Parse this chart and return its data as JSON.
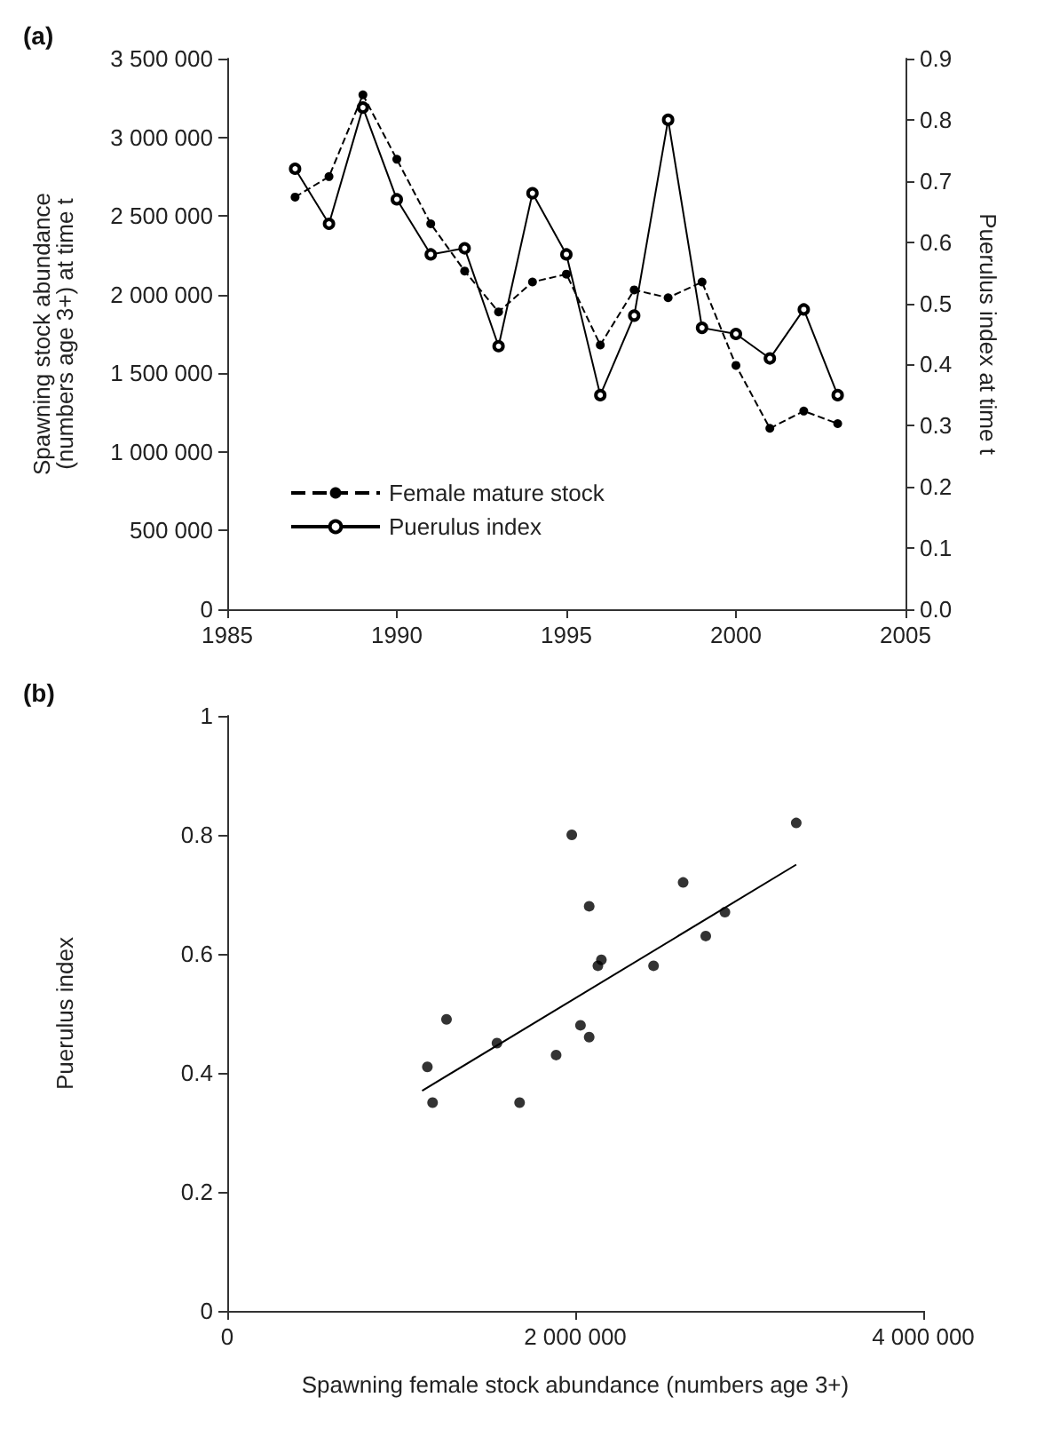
{
  "chart_data": [
    {
      "type": "line",
      "title": "(a)",
      "ylabel": "Spawning stock abundance\n(numbers age 3+) at time t",
      "y2label": "Puerulus index at time t",
      "x": [
        1987,
        1988,
        1989,
        1990,
        1991,
        1992,
        1993,
        1994,
        1995,
        1996,
        1997,
        1998,
        1999,
        2000,
        2001,
        2002,
        2003
      ],
      "series": [
        {
          "name": "Female mature stock",
          "color": "#000000",
          "line_style": "dashed",
          "marker": "circle",
          "values": [
            2620000,
            2750000,
            3270000,
            2860000,
            2450000,
            2150000,
            1890000,
            2080000,
            2130000,
            1680000,
            2030000,
            1980000,
            2080000,
            1550000,
            1150000,
            1260000,
            1180000
          ]
        },
        {
          "name": "Puerulus index",
          "color": "#000000",
          "line_style": "solid",
          "marker": "circle",
          "axis": "y2",
          "values": [
            0.72,
            0.63,
            0.82,
            0.67,
            0.58,
            0.59,
            0.43,
            0.68,
            0.58,
            0.35,
            0.48,
            0.8,
            0.46,
            0.45,
            0.41,
            0.49,
            0.35
          ]
        }
      ],
      "xlim": [
        1985,
        2005
      ],
      "xticks": [
        1985,
        1990,
        1995,
        2000,
        2005
      ],
      "ylim": [
        0,
        3500000
      ],
      "yticks": [
        0,
        {
          "value": 500000,
          "label": "500 000"
        },
        {
          "value": 1000000,
          "label": "1 000 000"
        },
        {
          "value": 1500000,
          "label": "1 500 000"
        },
        {
          "value": 2000000,
          "label": "2 000 000"
        },
        {
          "value": 2500000,
          "label": "2 500 000"
        },
        {
          "value": 3000000,
          "label": "3 000 000"
        },
        {
          "value": 3500000,
          "label": "3 500 000"
        }
      ],
      "y2lim": [
        0,
        0.9
      ],
      "y2ticks": [
        {
          "value": 0,
          "label": "0.0"
        },
        0.1,
        0.2,
        0.3,
        0.4,
        0.5,
        0.6,
        0.7,
        0.8,
        0.9
      ],
      "legend": "bottom left",
      "grid": false
    },
    {
      "type": "scatter",
      "title": "(b)",
      "xlabel": "Spawning female stock abundance (numbers age 3+)",
      "ylabel": "Puerulus index",
      "series": [
        {
          "type": "scatter",
          "color": "#000000",
          "marker": "circle",
          "x": [
            2620000,
            2750000,
            3270000,
            2860000,
            2450000,
            2150000,
            1890000,
            2080000,
            2130000,
            1680000,
            2030000,
            1980000,
            2080000,
            1550000,
            1150000,
            1260000,
            1180000
          ],
          "values": [
            0.72,
            0.63,
            0.82,
            0.67,
            0.58,
            0.59,
            0.43,
            0.68,
            0.58,
            0.35,
            0.48,
            0.8,
            0.46,
            0.45,
            0.41,
            0.49,
            0.35
          ]
        },
        {
          "type": "line",
          "color": "#000000",
          "marker": "none",
          "line_style": "solid",
          "x": [
            1120000,
            3270000
          ],
          "values": [
            0.37,
            0.75
          ]
        }
      ],
      "xlim": [
        0,
        4000000
      ],
      "xticks": [
        0,
        {
          "value": 2000000,
          "label": "2 000 000"
        },
        {
          "value": 4000000,
          "label": "4 000 000"
        }
      ],
      "ylim": [
        0,
        1
      ],
      "yticks": [
        0,
        0.2,
        0.4,
        0.6,
        0.8,
        1
      ],
      "legend": false,
      "grid": false
    }
  ]
}
